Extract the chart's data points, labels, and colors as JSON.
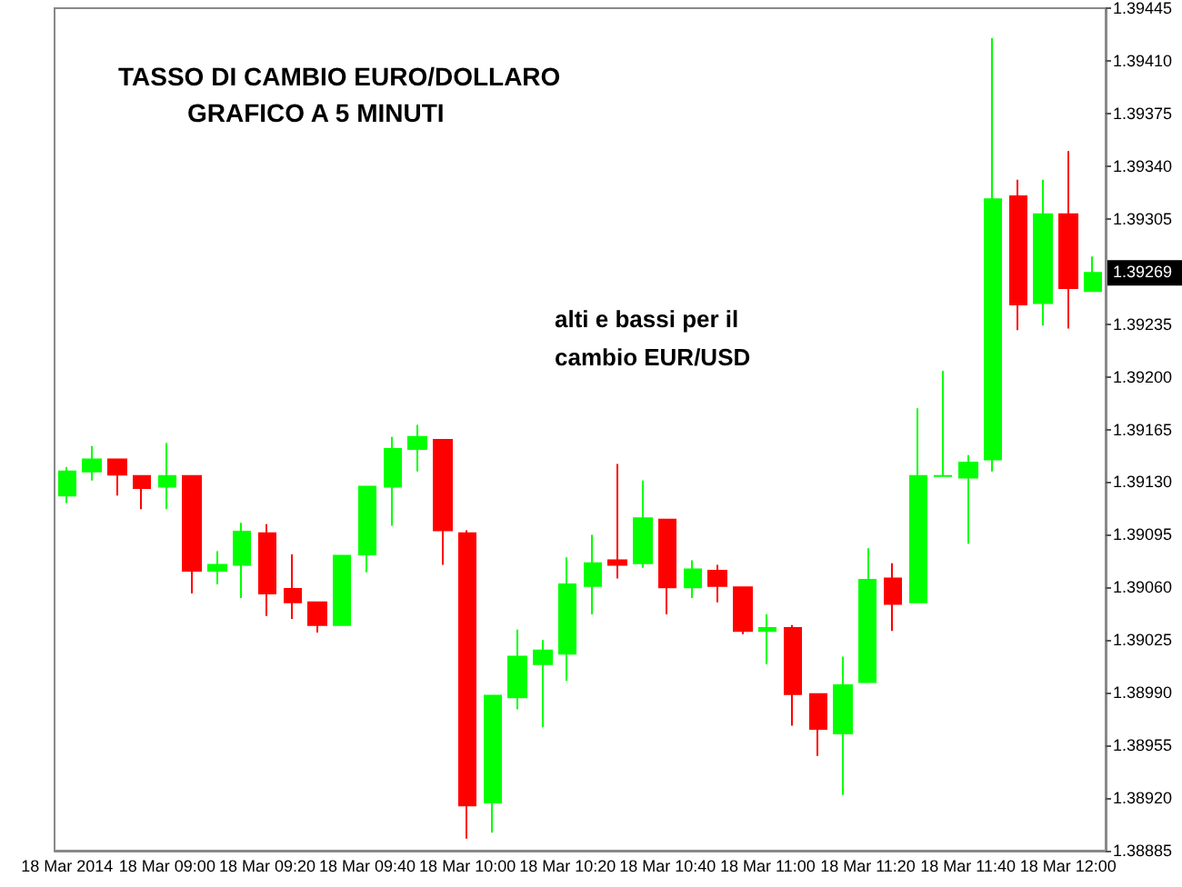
{
  "chart_data": {
    "type": "candlestick",
    "title": "TASSO DI CAMBIO EURO/DOLLARO",
    "subtitle": "GRAFICO A 5 MINUTI",
    "annotations": [
      "alti e bassi per il cambio EUR/USD",
      {
        "text": "1.39269",
        "y": 1.39269
      }
    ],
    "categories": [
      "18 Mar 2014",
      null,
      null,
      null,
      "18 Mar 09:00",
      null,
      null,
      null,
      "18 Mar 09:20",
      null,
      null,
      null,
      "18 Mar 09:40",
      null,
      null,
      null,
      "18 Mar 10:00",
      null,
      null,
      null,
      "18 Mar 10:20",
      null,
      null,
      null,
      "18 Mar 10:40",
      null,
      null,
      null,
      "18 Mar 11:00",
      null,
      null,
      null,
      "18 Mar 11:20",
      null,
      null,
      null,
      "18 Mar 11:40",
      null,
      null,
      null,
      "18 Mar 12:00",
      null
    ],
    "ohlc": [
      [
        1.39121,
        1.3914,
        1.39116,
        1.39137
      ],
      [
        1.39137,
        1.39154,
        1.39131,
        1.39145
      ],
      [
        1.39145,
        1.39145,
        1.39121,
        1.39135
      ],
      [
        1.39134,
        1.39134,
        1.39112,
        1.39126
      ],
      [
        1.39127,
        1.39156,
        1.39112,
        1.39134
      ],
      [
        1.39134,
        1.39134,
        1.39056,
        1.39071
      ],
      [
        1.39071,
        1.39084,
        1.39062,
        1.39075
      ],
      [
        1.39075,
        1.39103,
        1.39053,
        1.39097
      ],
      [
        1.39096,
        1.39102,
        1.39041,
        1.39056
      ],
      [
        1.39059,
        1.39082,
        1.39039,
        1.3905
      ],
      [
        1.3905,
        1.3905,
        1.3903,
        1.39035
      ],
      [
        1.39035,
        1.39081,
        1.39035,
        1.39081
      ],
      [
        1.39082,
        1.39127,
        1.3907,
        1.39127
      ],
      [
        1.39127,
        1.3916,
        1.39101,
        1.39152
      ],
      [
        1.39152,
        1.39168,
        1.39137,
        1.3916
      ],
      [
        1.39158,
        1.39158,
        1.39075,
        1.39098
      ],
      [
        1.39096,
        1.39098,
        1.38893,
        1.38915
      ],
      [
        1.38917,
        1.38988,
        1.38897,
        1.38988
      ],
      [
        1.38987,
        1.39032,
        1.38979,
        1.39014
      ],
      [
        1.39009,
        1.39025,
        1.38967,
        1.39018
      ],
      [
        1.39016,
        1.3908,
        1.38998,
        1.39062
      ],
      [
        1.39061,
        1.39095,
        1.39042,
        1.39076
      ],
      [
        1.39078,
        1.39142,
        1.39066,
        1.39075
      ],
      [
        1.39076,
        1.39131,
        1.39073,
        1.39106
      ],
      [
        1.39105,
        1.39105,
        1.39042,
        1.3906
      ],
      [
        1.3906,
        1.39078,
        1.39053,
        1.39072
      ],
      [
        1.39071,
        1.39075,
        1.3905,
        1.39061
      ],
      [
        1.3906,
        1.3906,
        1.39029,
        1.39031
      ],
      [
        1.39031,
        1.39042,
        1.39009,
        1.39033
      ],
      [
        1.39033,
        1.39035,
        1.38968,
        1.38989
      ],
      [
        1.38989,
        1.38989,
        1.38948,
        1.38966
      ],
      [
        1.38963,
        1.39014,
        1.38922,
        1.38995
      ],
      [
        1.38997,
        1.39086,
        1.38997,
        1.39065
      ],
      [
        1.39066,
        1.39076,
        1.39031,
        1.39049
      ],
      [
        1.3905,
        1.39179,
        1.3905,
        1.39134
      ],
      [
        1.39134,
        1.39204,
        1.39134,
        1.39134
      ],
      [
        1.39133,
        1.39148,
        1.39089,
        1.39143
      ],
      [
        1.39145,
        1.39425,
        1.39137,
        1.39318
      ],
      [
        1.3932,
        1.39331,
        1.39231,
        1.39248
      ],
      [
        1.39249,
        1.39331,
        1.39234,
        1.39308
      ],
      [
        1.39308,
        1.3935,
        1.39232,
        1.39259
      ],
      [
        1.39257,
        1.3928,
        1.39257,
        1.39269
      ]
    ],
    "colors": [
      "#00ff00",
      "#00ff00",
      "#ff0000",
      "#ff0000",
      "#00ff00",
      "#ff0000",
      "#00ff00",
      "#00ff00",
      "#ff0000",
      "#ff0000",
      "#ff0000",
      "#00ff00",
      "#00ff00",
      "#00ff00",
      "#00ff00",
      "#ff0000",
      "#ff0000",
      "#00ff00",
      "#00ff00",
      "#00ff00",
      "#00ff00",
      "#00ff00",
      "#ff0000",
      "#00ff00",
      "#ff0000",
      "#00ff00",
      "#ff0000",
      "#ff0000",
      "#00ff00",
      "#ff0000",
      "#ff0000",
      "#00ff00",
      "#00ff00",
      "#ff0000",
      "#00ff00",
      "#00ff00",
      "#00ff00",
      "#00ff00",
      "#ff0000",
      "#00ff00",
      "#ff0000",
      "#00ff00"
    ],
    "ylim": [
      1.38885,
      1.39445
    ],
    "yticks": [
      1.38885,
      {
        "value": 1.3892,
        "label": "1.38920"
      },
      1.38955,
      {
        "value": 1.3899,
        "label": "1.38990"
      },
      1.39025,
      {
        "value": 1.3906,
        "label": "1.39060"
      },
      1.39095,
      {
        "value": 1.3913,
        "label": "1.39130"
      },
      1.39165,
      {
        "value": 1.392,
        "label": "1.39200"
      },
      1.39235,
      1.39305,
      {
        "value": 1.3934,
        "label": "1.39340"
      },
      1.39375,
      {
        "value": 1.3941,
        "label": "1.39410"
      },
      1.39445
    ],
    "grid": false
  }
}
